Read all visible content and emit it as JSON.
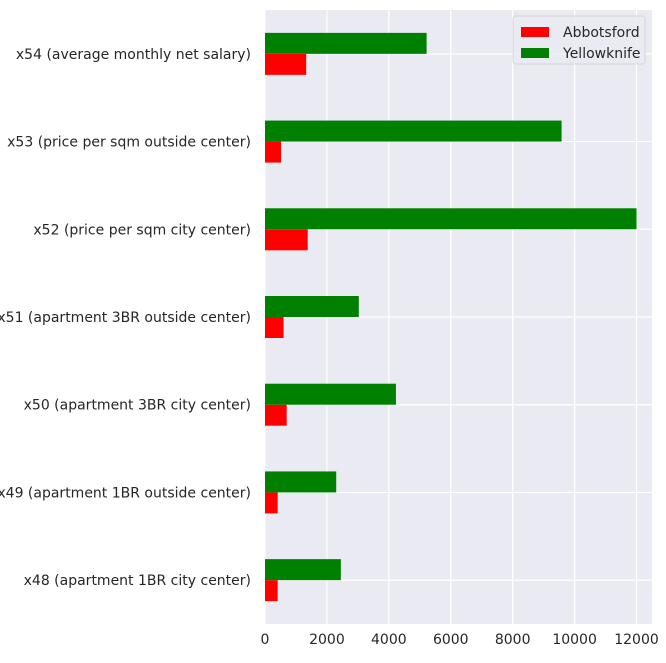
{
  "chart_data": {
    "type": "bar",
    "orientation": "horizontal",
    "categories": [
      "x48 (apartment 1BR city center)",
      "x49 (apartment 1BR outside center)",
      "x50 (apartment 3BR city center)",
      "x51 (apartment 3BR outside center)",
      "x52 (price per sqm city center)",
      "x53 (price per sqm outside center)",
      "x54 (average monthly net salary)"
    ],
    "series": [
      {
        "name": "Abbotsford",
        "color": "#ff0000",
        "values": [
          410,
          410,
          700,
          600,
          1380,
          520,
          1330
        ]
      },
      {
        "name": "Yellowknife",
        "color": "#008000",
        "values": [
          2450,
          2300,
          4230,
          3030,
          12000,
          9580,
          5220
        ]
      }
    ],
    "xlim": [
      0,
      12500
    ],
    "xticks": [
      0,
      2000,
      4000,
      6000,
      8000,
      10000,
      12000
    ],
    "xtick_labels": [
      "0",
      "2000",
      "4000",
      "6000",
      "8000",
      "10000",
      "12000"
    ],
    "title": "",
    "xlabel": "",
    "ylabel": "",
    "grid": true,
    "legend_position": "upper right",
    "background_color": "#eaeaf2"
  }
}
